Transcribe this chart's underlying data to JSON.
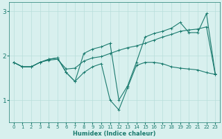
{
  "line1_x": [
    0,
    1,
    2,
    3,
    4,
    5,
    6,
    7,
    8,
    9,
    10,
    11,
    12,
    13,
    14,
    15,
    16,
    17,
    18,
    19,
    20,
    21,
    22,
    23
  ],
  "line1_y": [
    1.85,
    1.75,
    1.75,
    1.85,
    1.9,
    1.92,
    1.7,
    1.72,
    1.88,
    1.95,
    1.98,
    2.05,
    2.12,
    2.18,
    2.22,
    2.28,
    2.35,
    2.42,
    2.48,
    2.55,
    2.58,
    2.6,
    2.65,
    1.58
  ],
  "line2_x": [
    0,
    1,
    2,
    3,
    4,
    5,
    6,
    7,
    8,
    9,
    10,
    11,
    12,
    13,
    14,
    15,
    16,
    17,
    18,
    19,
    20,
    21,
    22,
    23
  ],
  "line2_y": [
    1.85,
    1.75,
    1.75,
    1.85,
    1.92,
    1.95,
    1.62,
    1.42,
    2.05,
    2.15,
    2.2,
    2.28,
    1.0,
    1.32,
    1.85,
    2.42,
    2.5,
    2.55,
    2.62,
    2.75,
    2.52,
    2.52,
    2.95,
    1.6
  ],
  "line3_x": [
    0,
    1,
    2,
    3,
    4,
    5,
    6,
    7,
    8,
    9,
    10,
    11,
    12,
    13,
    14,
    15,
    16,
    17,
    18,
    19,
    20,
    21,
    22,
    23
  ],
  "line3_y": [
    1.85,
    1.75,
    1.75,
    1.85,
    1.92,
    1.95,
    1.62,
    1.42,
    1.62,
    1.75,
    1.82,
    1.0,
    0.78,
    1.28,
    1.78,
    1.85,
    1.85,
    1.82,
    1.75,
    1.72,
    1.7,
    1.68,
    1.62,
    1.58
  ],
  "color": "#1a7a6e",
  "bg_color": "#d8f0ee",
  "grid_color": "#b8deda",
  "xlabel": "Humidex (Indice chaleur)",
  "xlim": [
    -0.5,
    23.5
  ],
  "ylim": [
    0.5,
    3.2
  ],
  "yticks": [
    1,
    2,
    3
  ],
  "xticks": [
    0,
    1,
    2,
    3,
    4,
    5,
    6,
    7,
    8,
    9,
    10,
    11,
    12,
    13,
    14,
    15,
    16,
    17,
    18,
    19,
    20,
    21,
    22,
    23
  ],
  "figsize": [
    3.2,
    2.0
  ],
  "dpi": 100
}
